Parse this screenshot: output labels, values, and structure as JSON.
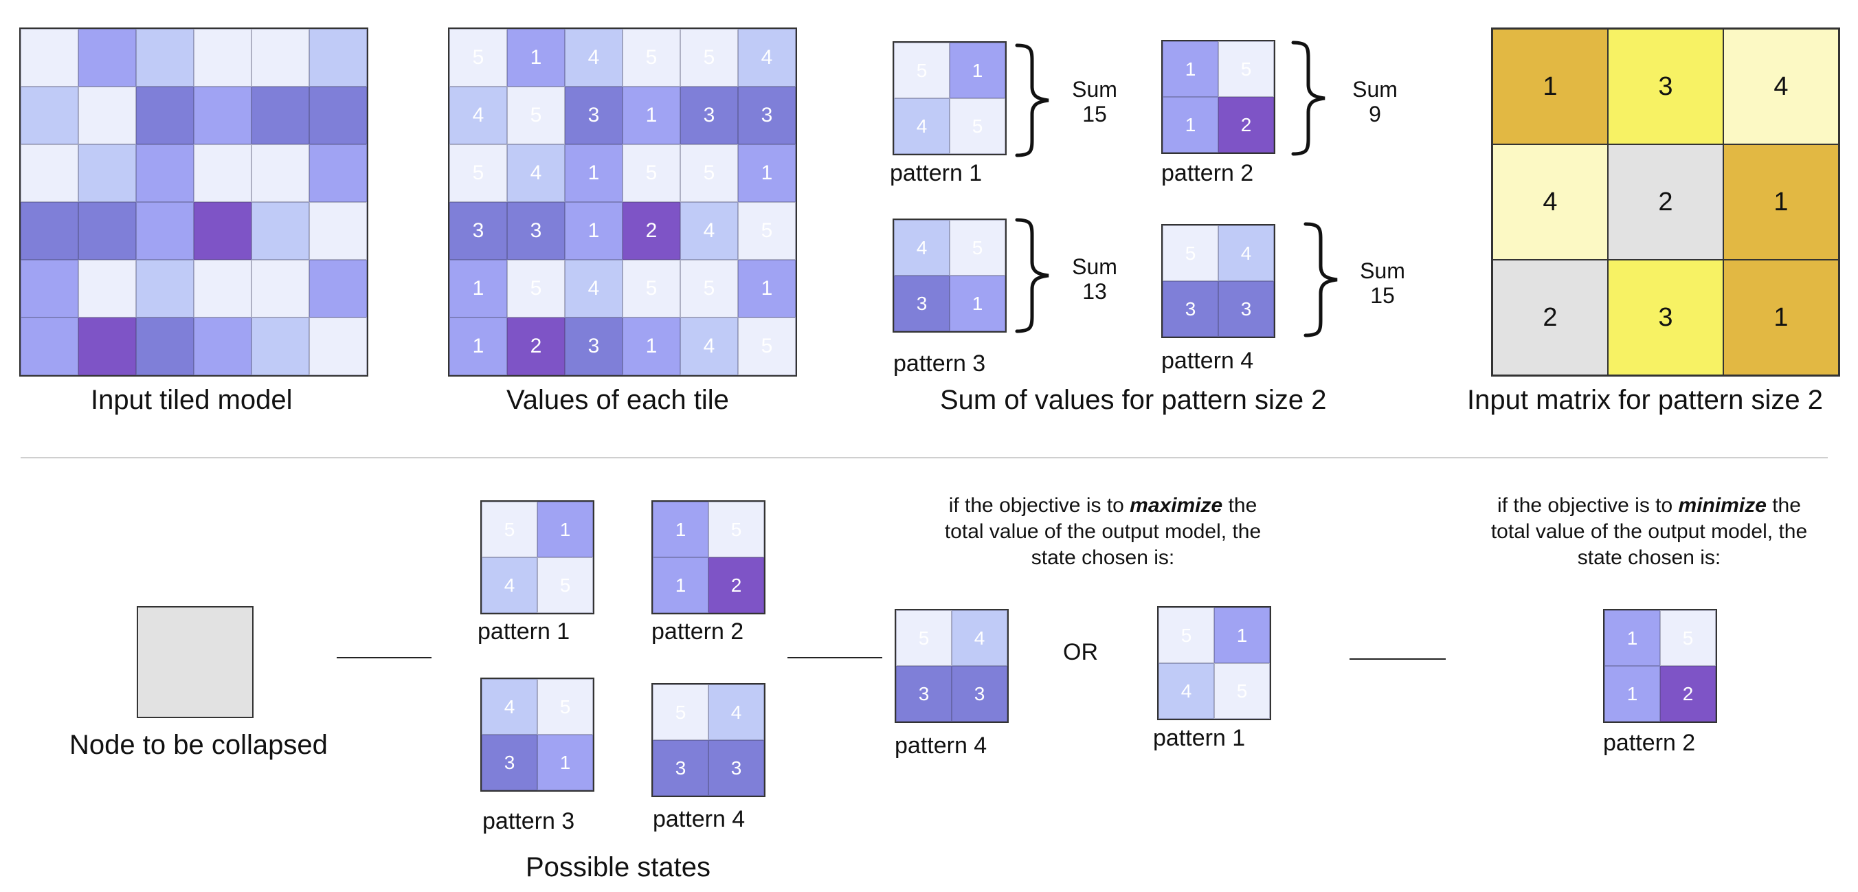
{
  "colors": {
    "1": "#a0a3f3",
    "2": "#7e54c6",
    "3": "#7f7fd8",
    "4": "#c0cbf7",
    "5": "#eceffc",
    "matrix_1": "#e2b843",
    "matrix_2": "#e2e2e2",
    "matrix_3": "#f7f264",
    "matrix_4": "#fcf9c4",
    "grid_line": "#333333",
    "separator": "#cfcfcf"
  },
  "tiles": [
    [
      5,
      1,
      4,
      5,
      5,
      4
    ],
    [
      4,
      5,
      3,
      1,
      3,
      3
    ],
    [
      5,
      4,
      1,
      5,
      5,
      1
    ],
    [
      3,
      3,
      1,
      2,
      4,
      5
    ],
    [
      1,
      5,
      4,
      5,
      5,
      1
    ],
    [
      1,
      2,
      3,
      1,
      4,
      5
    ]
  ],
  "patterns": [
    {
      "label": "pattern 1",
      "values": [
        [
          5,
          1
        ],
        [
          4,
          5
        ]
      ],
      "sum_label": "Sum",
      "sum": "15"
    },
    {
      "label": "pattern 2",
      "values": [
        [
          1,
          5
        ],
        [
          1,
          2
        ]
      ],
      "sum_label": "Sum",
      "sum": "9"
    },
    {
      "label": "pattern 3",
      "values": [
        [
          4,
          5
        ],
        [
          3,
          1
        ]
      ],
      "sum_label": "Sum",
      "sum": "13"
    },
    {
      "label": "pattern 4",
      "values": [
        [
          5,
          4
        ],
        [
          3,
          3
        ]
      ],
      "sum_label": "Sum",
      "sum": "15"
    }
  ],
  "matrix": [
    [
      1,
      3,
      4
    ],
    [
      4,
      2,
      1
    ],
    [
      2,
      3,
      1
    ]
  ],
  "captions": {
    "input_model": "Input tiled model",
    "tile_values": "Values of each tile",
    "pattern_sums": "Sum of values for pattern size 2",
    "input_matrix": "Input matrix for pattern size 2",
    "node": "Node to be collapsed",
    "possible_states": "Possible states",
    "or": "OR"
  },
  "maximize_note": {
    "line1_pre": "if the objective is to ",
    "line1_em": "maximize",
    "line1_post": " the",
    "line2": "total value of the output model, the",
    "line3": "state chosen is:"
  },
  "minimize_note": {
    "line1_pre": "if the objective is to ",
    "line1_em": "minimize",
    "line1_post": " the",
    "line2": "total value of the output model, the",
    "line3": "state chosen is:"
  }
}
